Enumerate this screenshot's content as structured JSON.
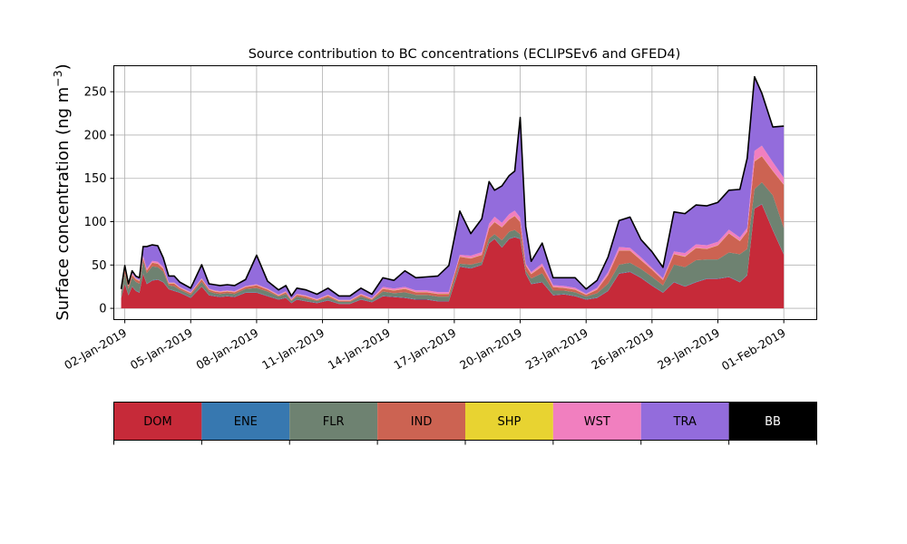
{
  "chart_data": {
    "type": "area",
    "stacked": true,
    "title": "Source contribution to BC concentrations (ECLIPSEv6 and GFED4)",
    "ylabel": "Surface concentration (ng m",
    "ylabel_sup": "−3",
    "ylabel_close": ")",
    "xlabel": "",
    "xlim": [
      "2019-01-01T12:00",
      "2019-02-02T12:00"
    ],
    "ylim": [
      -13,
      280
    ],
    "yticks": [
      0,
      50,
      100,
      150,
      200,
      250
    ],
    "xtick_labels": [
      "02-Jan-2019",
      "05-Jan-2019",
      "08-Jan-2019",
      "11-Jan-2019",
      "14-Jan-2019",
      "17-Jan-2019",
      "20-Jan-2019",
      "23-Jan-2019",
      "26-Jan-2019",
      "29-Jan-2019",
      "01-Feb-2019"
    ],
    "xtick_dates": [
      "2019-01-02",
      "2019-01-05",
      "2019-01-08",
      "2019-01-11",
      "2019-01-14",
      "2019-01-17",
      "2019-01-20",
      "2019-01-23",
      "2019-01-26",
      "2019-01-29",
      "2019-02-01"
    ],
    "grid": true,
    "x": [
      "2019-01-01T20:00",
      "2019-01-02T00:00",
      "2019-01-02T04:00",
      "2019-01-02T08:00",
      "2019-01-02T12:00",
      "2019-01-02T16:00",
      "2019-01-02T20:00",
      "2019-01-03T00:00",
      "2019-01-03T06:00",
      "2019-01-03T12:00",
      "2019-01-03T18:00",
      "2019-01-04T00:00",
      "2019-01-04T06:00",
      "2019-01-04T12:00",
      "2019-01-05T00:00",
      "2019-01-05T12:00",
      "2019-01-05T20:00",
      "2019-01-06T02:00",
      "2019-01-06T08:00",
      "2019-01-06T16:00",
      "2019-01-07T00:00",
      "2019-01-07T12:00",
      "2019-01-08T00:00",
      "2019-01-08T12:00",
      "2019-01-09T00:00",
      "2019-01-09T08:00",
      "2019-01-09T14:00",
      "2019-01-09T20:00",
      "2019-01-10T06:00",
      "2019-01-10T18:00",
      "2019-01-11T06:00",
      "2019-01-11T18:00",
      "2019-01-12T06:00",
      "2019-01-12T18:00",
      "2019-01-13T06:00",
      "2019-01-13T18:00",
      "2019-01-14T06:00",
      "2019-01-14T18:00",
      "2019-01-15T06:00",
      "2019-01-15T18:00",
      "2019-01-16T06:00",
      "2019-01-16T18:00",
      "2019-01-17T06:00",
      "2019-01-17T18:00",
      "2019-01-18T06:00",
      "2019-01-18T14:00",
      "2019-01-18T20:00",
      "2019-01-19T04:00",
      "2019-01-19T12:00",
      "2019-01-19T18:00",
      "2019-01-20T00:00",
      "2019-01-20T06:00",
      "2019-01-20T12:00",
      "2019-01-21T00:00",
      "2019-01-21T12:00",
      "2019-01-22T00:00",
      "2019-01-22T12:00",
      "2019-01-23T00:00",
      "2019-01-23T12:00",
      "2019-01-24T00:00",
      "2019-01-24T12:00",
      "2019-01-25T00:00",
      "2019-01-25T12:00",
      "2019-01-26T00:00",
      "2019-01-26T12:00",
      "2019-01-27T00:00",
      "2019-01-27T12:00",
      "2019-01-28T00:00",
      "2019-01-28T12:00",
      "2019-01-29T00:00",
      "2019-01-29T12:00",
      "2019-01-30T00:00",
      "2019-01-30T08:00",
      "2019-01-30T16:00",
      "2019-01-31T00:00",
      "2019-01-31T12:00",
      "2019-02-01T00:00"
    ],
    "series": [
      {
        "name": "DOM",
        "color": "#c62a39",
        "values": [
          12,
          28,
          15,
          25,
          20,
          18,
          40,
          28,
          32,
          33,
          30,
          22,
          20,
          18,
          12,
          25,
          15,
          14,
          13,
          14,
          13,
          18,
          18,
          14,
          10,
          12,
          6,
          10,
          8,
          6,
          9,
          5,
          5,
          10,
          7,
          14,
          13,
          12,
          10,
          10,
          8,
          8,
          48,
          46,
          50,
          75,
          80,
          70,
          80,
          82,
          80,
          40,
          28,
          30,
          15,
          16,
          14,
          10,
          12,
          20,
          40,
          42,
          35,
          26,
          18,
          30,
          25,
          30,
          34,
          34,
          36,
          30,
          38,
          115,
          120,
          90,
          62
        ]
      },
      {
        "name": "ENE",
        "color": "#3778b0",
        "values": [
          0.5,
          0.5,
          0.5,
          0.5,
          0.5,
          0.5,
          0.5,
          0.5,
          0.5,
          0.5,
          0.5,
          0.5,
          0.5,
          0.5,
          0.5,
          0.5,
          0.5,
          0.5,
          0.5,
          0.5,
          0.5,
          0.5,
          0.5,
          0.5,
          0.5,
          0.5,
          0.5,
          0.5,
          0.5,
          0.5,
          0.5,
          0.5,
          0.5,
          0.5,
          0.5,
          0.5,
          0.5,
          0.5,
          0.5,
          0.5,
          0.5,
          0.5,
          0.5,
          0.5,
          0.5,
          0.5,
          0.5,
          0.5,
          0.5,
          0.5,
          0.5,
          0.5,
          0.5,
          0.5,
          0.5,
          0.5,
          0.5,
          0.5,
          0.5,
          0.5,
          0.5,
          0.5,
          0.5,
          0.5,
          0.5,
          0.5,
          0.5,
          0.5,
          0.5,
          0.5,
          0.5,
          0.5,
          0.5,
          0.5,
          0.5,
          0.5,
          0.5
        ]
      },
      {
        "name": "FLR",
        "color": "#6e8271",
        "values": [
          5,
          12,
          7,
          10,
          10,
          10,
          14,
          12,
          16,
          14,
          12,
          4,
          5,
          3,
          3,
          5,
          4,
          3,
          3,
          3,
          3,
          4,
          5,
          5,
          3,
          4,
          2,
          3,
          3,
          2,
          3,
          2,
          2,
          3,
          2,
          5,
          4,
          6,
          5,
          5,
          5,
          5,
          3,
          4,
          3,
          5,
          5,
          8,
          8,
          8,
          5,
          3,
          6,
          10,
          5,
          4,
          4,
          3,
          5,
          8,
          10,
          10,
          10,
          10,
          8,
          20,
          22,
          25,
          22,
          22,
          28,
          32,
          30,
          22,
          25,
          40,
          30
        ]
      },
      {
        "name": "IND",
        "color": "#cc6352",
        "values": [
          2,
          4,
          3,
          3,
          3,
          3,
          4,
          3,
          4,
          4,
          3,
          2,
          3,
          2,
          2,
          3,
          2,
          2,
          2,
          2,
          2,
          2,
          3,
          2,
          1,
          2,
          1,
          2,
          2,
          1,
          2,
          1,
          1,
          2,
          1,
          3,
          3,
          4,
          3,
          3,
          3,
          3,
          8,
          7,
          8,
          12,
          14,
          15,
          14,
          16,
          14,
          6,
          5,
          8,
          4,
          3,
          3,
          2,
          4,
          10,
          16,
          14,
          10,
          8,
          6,
          12,
          12,
          14,
          12,
          16,
          22,
          15,
          20,
          32,
          30,
          28,
          50
        ]
      },
      {
        "name": "SHP",
        "color": "#e8d331",
        "values": [
          0.3,
          0.3,
          0.3,
          0.3,
          0.3,
          0.3,
          0.3,
          0.3,
          0.3,
          0.3,
          0.3,
          0.3,
          0.3,
          0.3,
          0.3,
          0.3,
          0.3,
          0.3,
          0.3,
          0.3,
          0.3,
          0.3,
          0.3,
          0.3,
          0.3,
          0.3,
          0.3,
          0.3,
          0.3,
          0.3,
          0.3,
          0.3,
          0.3,
          0.3,
          0.3,
          0.3,
          0.3,
          0.3,
          0.3,
          0.3,
          0.3,
          0.3,
          0.3,
          0.3,
          0.3,
          0.3,
          0.3,
          0.3,
          0.3,
          0.3,
          0.3,
          0.3,
          0.3,
          0.3,
          0.3,
          0.3,
          0.3,
          0.3,
          0.3,
          0.3,
          0.3,
          0.3,
          0.3,
          0.3,
          0.3,
          0.3,
          0.3,
          0.3,
          0.3,
          0.3,
          0.3,
          0.3,
          0.3,
          0.3,
          0.3,
          0.3,
          0.3
        ]
      },
      {
        "name": "WST",
        "color": "#f17fbf",
        "values": [
          1,
          2,
          1,
          2,
          1,
          1,
          2,
          2,
          2,
          2,
          2,
          1,
          1,
          1,
          1,
          1,
          1,
          1,
          1,
          1,
          1,
          1,
          1,
          1,
          1,
          1,
          1,
          1,
          1,
          1,
          1,
          1,
          1,
          1,
          1,
          2,
          2,
          2,
          2,
          2,
          2,
          2,
          2,
          3,
          3,
          5,
          6,
          5,
          6,
          6,
          5,
          2,
          2,
          3,
          2,
          2,
          2,
          1,
          2,
          3,
          4,
          3,
          3,
          2,
          2,
          3,
          4,
          4,
          4,
          4,
          4,
          4,
          4,
          12,
          12,
          10,
          8
        ]
      },
      {
        "name": "TRA",
        "color": "#936cdc",
        "values": [
          1,
          2,
          1,
          2,
          2,
          2,
          10,
          25,
          18,
          18,
          10,
          7,
          7,
          5,
          4,
          15,
          5,
          6,
          6,
          6,
          6,
          7,
          33,
          8,
          5,
          6,
          3,
          6,
          6,
          5,
          7,
          4,
          4,
          6,
          4,
          10,
          9,
          18,
          14,
          15,
          18,
          30,
          50,
          25,
          38,
          48,
          30,
          42,
          44,
          45,
          115,
          42,
          12,
          23,
          8,
          9,
          11,
          5,
          8,
          17,
          30,
          35,
          20,
          18,
          12,
          45,
          45,
          45,
          45,
          45,
          45,
          55,
          80,
          85,
          60,
          40,
          59
        ]
      },
      {
        "name": "BB",
        "color": "#000000",
        "values": [
          0.5,
          0.5,
          0.5,
          0.5,
          0.5,
          0.5,
          0.5,
          0.5,
          0.5,
          0.5,
          0.5,
          0.5,
          0.5,
          0.5,
          0.5,
          0.5,
          0.5,
          0.5,
          0.5,
          0.5,
          0.5,
          0.5,
          0.5,
          0.5,
          0.5,
          0.5,
          0.5,
          0.5,
          0.5,
          0.5,
          0.5,
          0.5,
          0.5,
          0.5,
          0.5,
          0.5,
          0.5,
          0.5,
          0.5,
          0.5,
          0.5,
          0.5,
          0.5,
          0.5,
          0.5,
          0.5,
          0.5,
          0.5,
          0.5,
          0.5,
          0.5,
          0.5,
          0.5,
          0.5,
          0.5,
          0.5,
          0.5,
          0.5,
          0.5,
          0.5,
          0.5,
          0.5,
          0.5,
          0.5,
          0.5,
          0.5,
          0.5,
          0.5,
          0.5,
          0.5,
          0.5,
          0.5,
          0.5,
          0.5,
          0.5,
          0.5,
          0.5
        ]
      }
    ],
    "colorbar": {
      "labels": [
        "DOM",
        "ENE",
        "FLR",
        "IND",
        "SHP",
        "WST",
        "TRA",
        "BB"
      ],
      "colors": [
        "#c62a39",
        "#3778b0",
        "#6e8271",
        "#cc6352",
        "#e8d331",
        "#f17fbf",
        "#936cdc",
        "#000000"
      ],
      "text_colors": [
        "#000000",
        "#000000",
        "#000000",
        "#000000",
        "#000000",
        "#000000",
        "#000000",
        "#ffffff"
      ]
    }
  }
}
